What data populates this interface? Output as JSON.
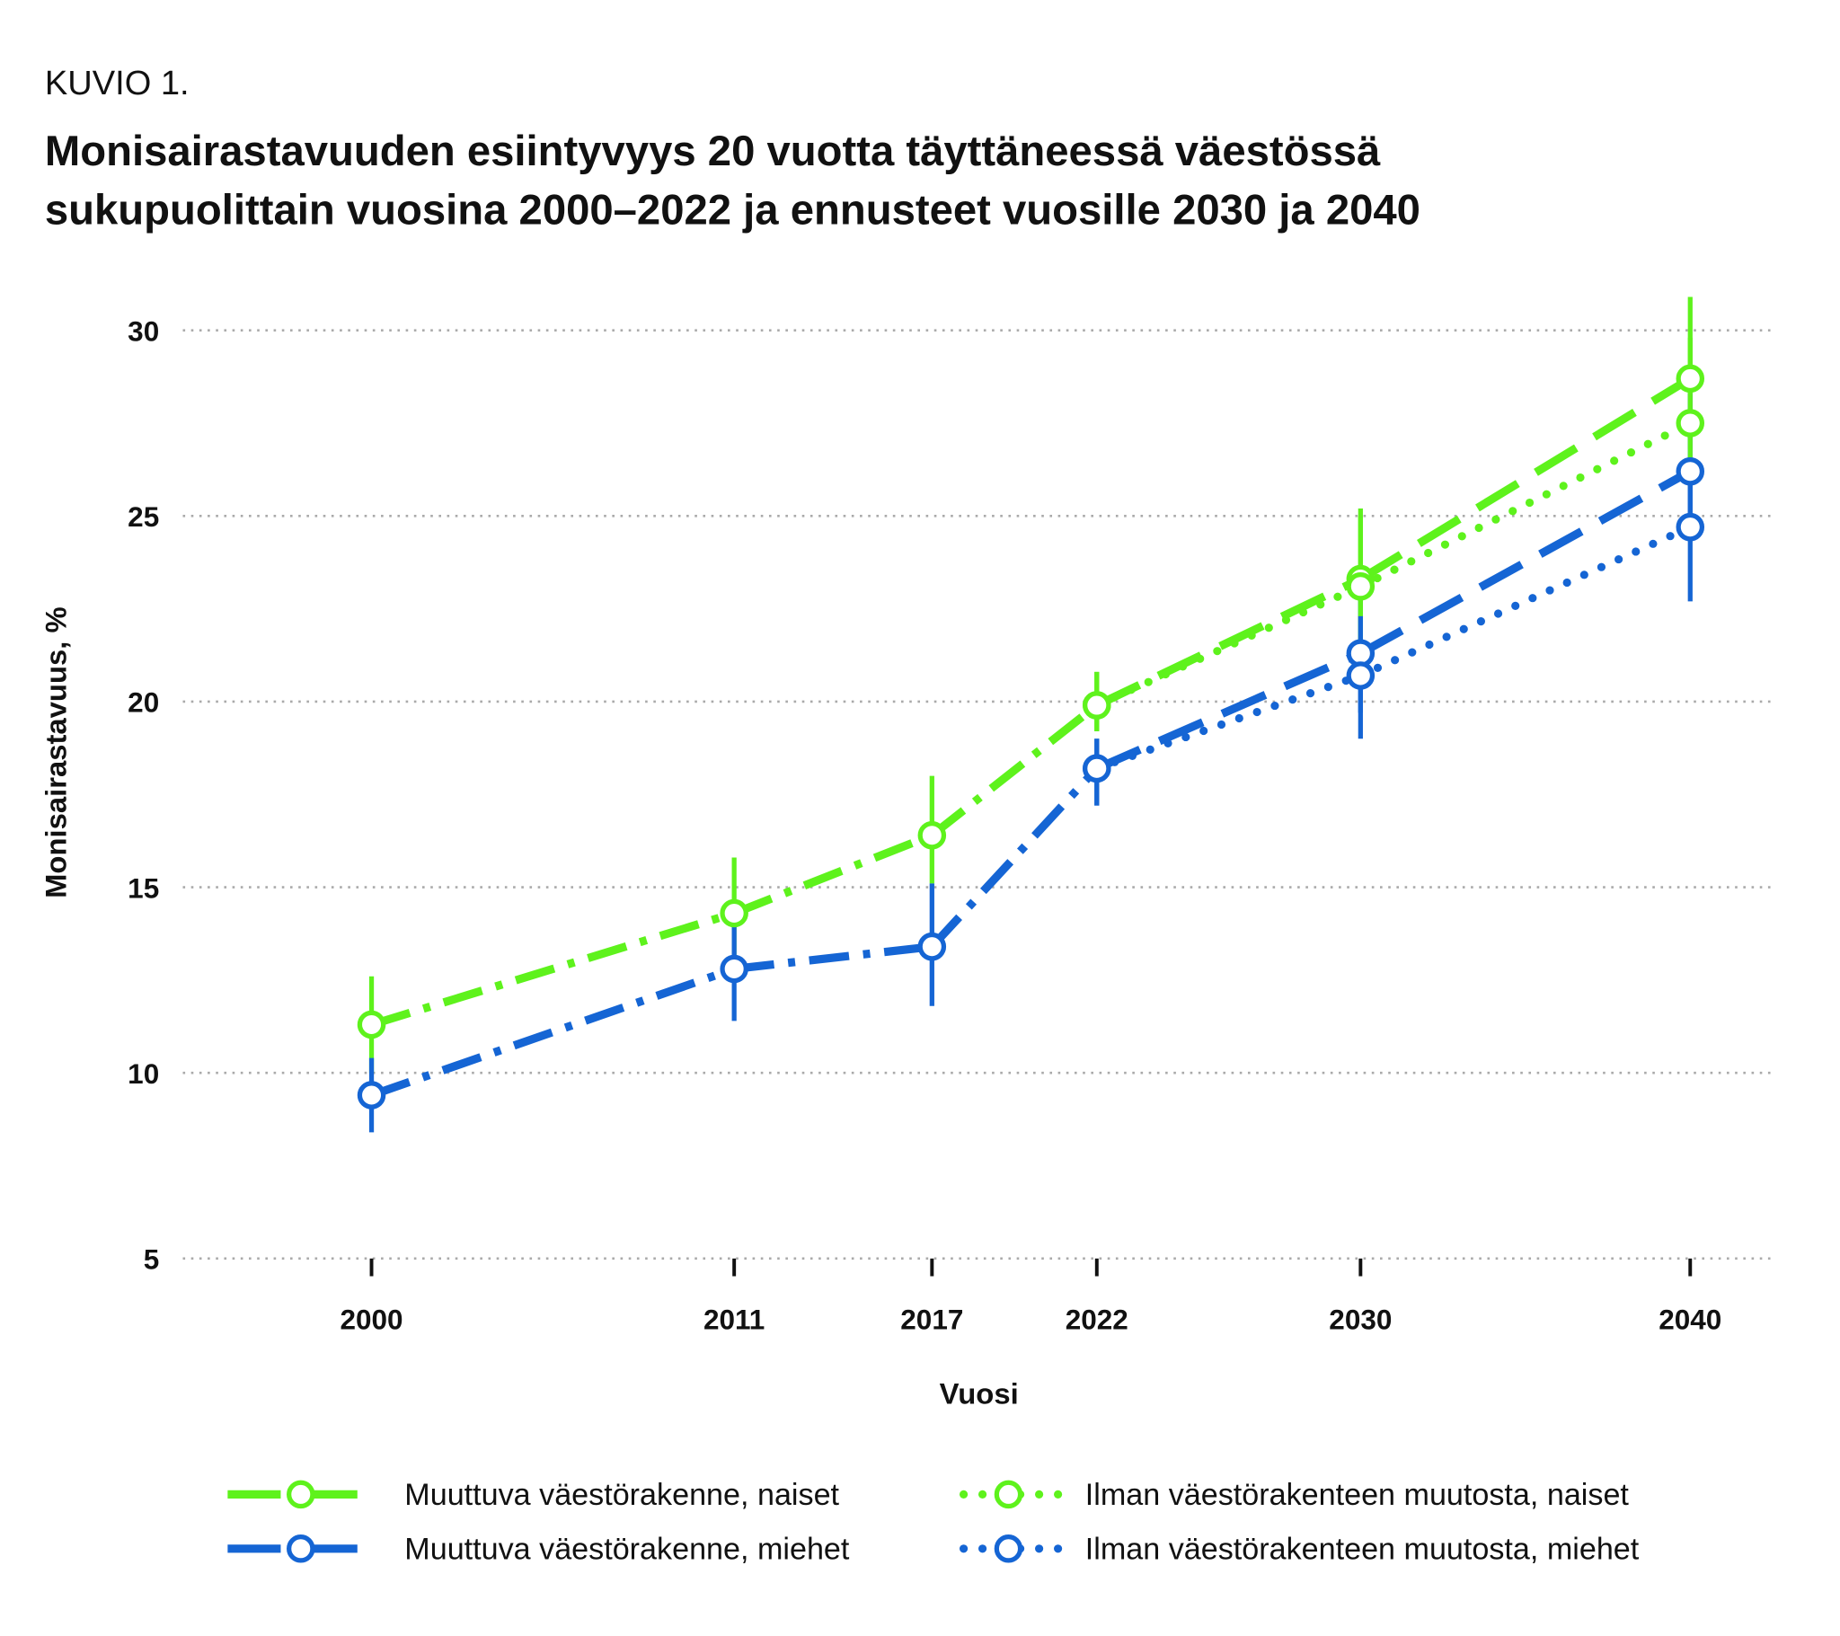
{
  "figure_label": "KUVIO 1.",
  "title_lines": [
    "Monisairastavuuden esiintyvyys 20 vuotta täyttäneessä väestössä",
    "sukupuolittain vuosina 2000–2022 ja ennusteet vuosille 2030 ja 2040"
  ],
  "colors": {
    "naiset": "#5ef21c",
    "miehet": "#1565d4",
    "grid": "#aaaaaa"
  },
  "chart_data": {
    "type": "line",
    "title": "Monisairastavuuden esiintyvyys 20 vuotta täyttäneessä väestössä sukupuolittain vuosina 2000–2022 ja ennusteet vuosille 2030 ja 2040",
    "xlabel": "Vuosi",
    "ylabel": "Monisairastavuus, %",
    "x_ticks": [
      2000,
      2011,
      2017,
      2022,
      2030,
      2040
    ],
    "x_range": [
      1995,
      2042.5
    ],
    "ylim": [
      5,
      30
    ],
    "y_ticks": [
      5,
      10,
      15,
      20,
      25,
      30
    ],
    "grid": "horizontal dotted",
    "legend_position": "bottom",
    "series": [
      {
        "name": "Muuttuva väestörakenne, naiset",
        "color_key": "naiset",
        "style": "dashed",
        "x": [
          2000,
          2011,
          2017,
          2022,
          2030,
          2040
        ],
        "y": [
          11.3,
          14.3,
          16.4,
          19.9,
          23.3,
          28.7
        ],
        "ci_low": [
          10.0,
          12.9,
          15.1,
          19.2,
          21.7,
          26.8
        ],
        "ci_high": [
          12.6,
          15.8,
          18.0,
          20.8,
          25.2,
          30.9
        ]
      },
      {
        "name": "Muuttuva väestörakenne, miehet",
        "color_key": "miehet",
        "style": "dashed",
        "x": [
          2000,
          2011,
          2017,
          2022,
          2030,
          2040
        ],
        "y": [
          9.4,
          12.8,
          13.4,
          18.2,
          21.3,
          26.2
        ],
        "ci_low": [
          8.4,
          11.4,
          11.8,
          17.2,
          19.7,
          24.9
        ],
        "ci_high": [
          10.4,
          14.0,
          15.1,
          19.0,
          22.9,
          28.3
        ]
      },
      {
        "name": "Ilman väestörakenteen muutosta, naiset",
        "color_key": "naiset",
        "style": "dotted",
        "x": [
          2022,
          2030,
          2040
        ],
        "y": [
          19.9,
          23.1,
          27.5
        ],
        "ci_low": [
          19.2,
          21.5,
          26.2
        ],
        "ci_high": [
          20.8,
          25.0,
          29.8
        ]
      },
      {
        "name": "Ilman väestörakenteen muutosta, miehet",
        "color_key": "miehet",
        "style": "dotted",
        "x": [
          2022,
          2030,
          2040
        ],
        "y": [
          18.2,
          20.7,
          24.7
        ],
        "ci_low": [
          17.2,
          19.0,
          22.7
        ],
        "ci_high": [
          19.0,
          22.3,
          26.2
        ]
      }
    ]
  }
}
